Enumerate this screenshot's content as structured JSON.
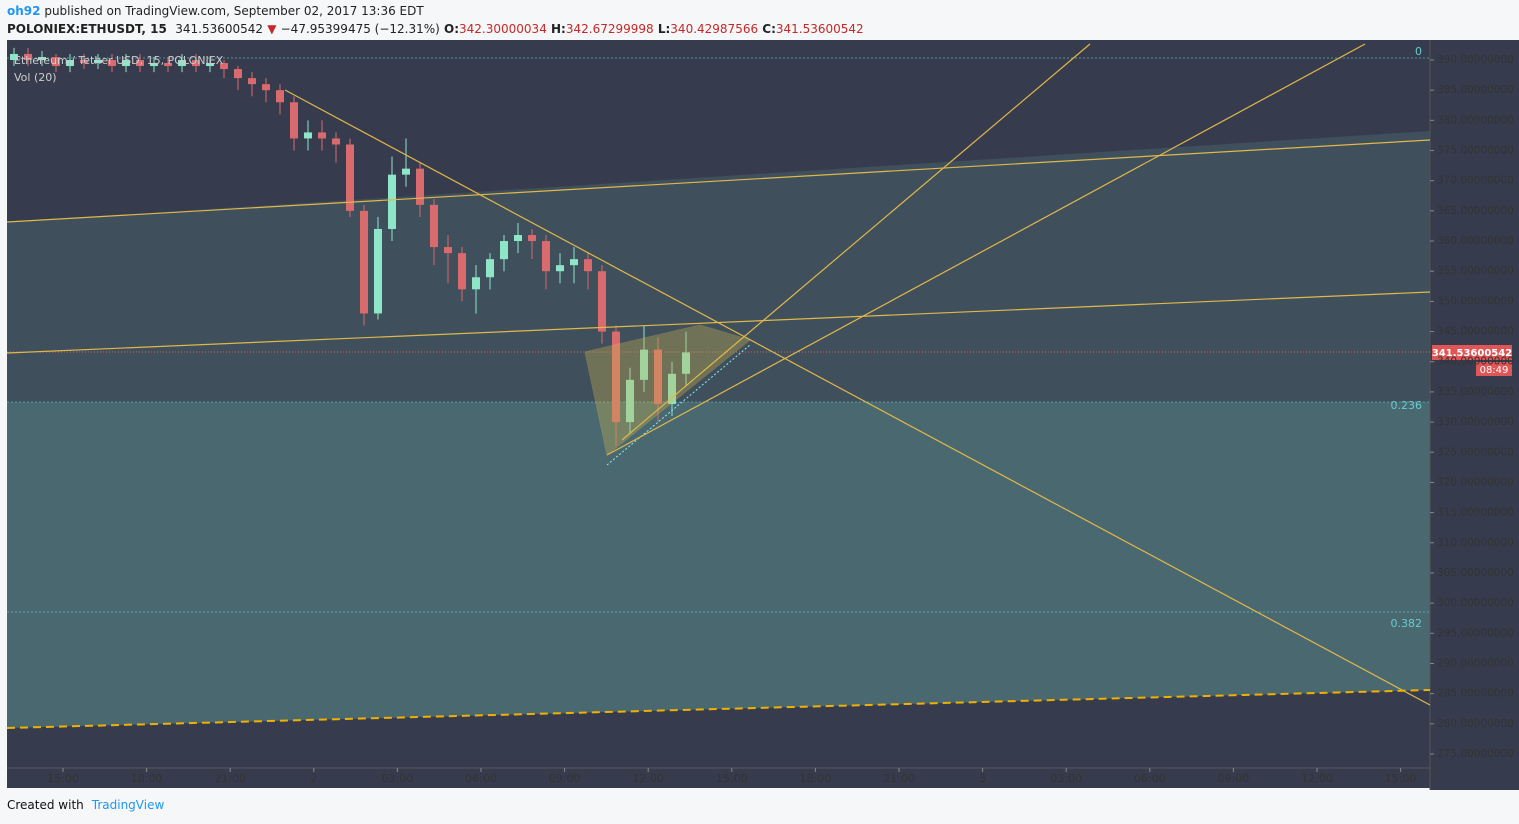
{
  "header": {
    "author": "oh92",
    "published": "published on TradingView.com, September 02, 2017 13:36 EDT"
  },
  "symbol_bar": {
    "symbol": "POLONIEX:ETHUSDT, 15",
    "last": "341.53600542",
    "arrow": "▼",
    "change": "−47.95399475 (−12.31%)",
    "open": "O:",
    "open_value": "342.30000034",
    "high": "H:",
    "high_value": "342.67299998",
    "low": "L:",
    "low_value": "340.42987566",
    "close": "C:",
    "close_value": "341.53600542"
  },
  "legend": {
    "series": "Ethereum / Tether USD, 15, POLONIEX",
    "volume": "Vol (20)"
  },
  "chart": {
    "candles": [
      [
        390,
        392,
        389,
        391
      ],
      [
        391,
        392,
        389,
        390
      ],
      [
        390,
        391.5,
        389,
        390.5
      ],
      [
        390.5,
        391,
        388,
        389
      ],
      [
        389,
        391,
        388,
        390
      ],
      [
        390,
        391,
        388.5,
        389.5
      ],
      [
        389.5,
        391,
        388.5,
        390
      ],
      [
        390,
        391,
        388,
        389
      ],
      [
        389,
        391,
        388,
        390
      ],
      [
        390,
        391,
        388,
        389
      ],
      [
        389,
        390.5,
        388,
        389.5
      ],
      [
        389.5,
        390.5,
        388,
        389
      ],
      [
        389,
        391,
        388,
        390
      ],
      [
        390,
        391,
        388,
        389
      ],
      [
        389,
        390.5,
        388,
        389.5
      ],
      [
        389.5,
        390,
        387,
        388.5
      ],
      [
        388.5,
        389,
        385,
        387
      ],
      [
        387,
        388,
        384,
        386
      ],
      [
        386,
        387,
        383,
        385
      ],
      [
        385,
        386,
        381,
        383
      ],
      [
        383,
        384,
        375,
        377
      ],
      [
        377,
        380,
        375,
        378
      ],
      [
        378,
        380,
        375,
        377
      ],
      [
        377,
        378,
        373,
        376
      ],
      [
        376,
        377,
        364,
        365
      ],
      [
        365,
        366,
        346,
        348
      ],
      [
        348,
        364,
        347,
        362
      ],
      [
        362,
        374,
        360,
        371
      ],
      [
        371,
        377,
        369,
        372
      ],
      [
        372,
        373,
        364,
        366
      ],
      [
        366,
        367,
        356,
        359
      ],
      [
        359,
        361,
        353,
        358
      ],
      [
        358,
        359,
        350,
        352
      ],
      [
        352,
        356,
        348,
        354
      ],
      [
        354,
        358,
        352,
        357
      ],
      [
        357,
        361,
        355,
        360
      ],
      [
        360,
        363,
        358,
        361
      ],
      [
        361,
        362,
        357,
        360
      ],
      [
        360,
        361,
        352,
        355
      ],
      [
        355,
        358,
        353,
        356
      ],
      [
        356,
        359,
        353,
        357
      ],
      [
        357,
        358,
        352,
        355
      ],
      [
        355,
        356,
        343,
        345
      ],
      [
        345,
        346,
        326,
        330
      ],
      [
        330,
        339,
        328,
        337
      ],
      [
        337,
        346,
        335,
        342
      ],
      [
        342,
        344,
        330,
        333
      ],
      [
        333,
        340,
        331,
        338
      ],
      [
        338,
        345,
        336,
        341.54
      ]
    ],
    "yticks": [
      {
        "value": 390,
        "label": "390.00000000"
      },
      {
        "value": 385,
        "label": "385.00000000"
      },
      {
        "value": 380,
        "label": "380.00000000"
      },
      {
        "value": 375,
        "label": "375.00000000"
      },
      {
        "value": 370,
        "label": "370.00000000"
      },
      {
        "value": 365,
        "label": "365.00000000"
      },
      {
        "value": 360,
        "label": "360.00000000"
      },
      {
        "value": 355,
        "label": "355.00000000"
      },
      {
        "value": 350,
        "label": "350.00000000"
      },
      {
        "value": 345,
        "label": "345.00000000"
      },
      {
        "value": 340,
        "label": "340.00000000"
      },
      {
        "value": 335,
        "label": "335.00000000"
      },
      {
        "value": 330,
        "label": "330.00000000"
      },
      {
        "value": 325,
        "label": "325.00000000"
      },
      {
        "value": 320,
        "label": "320.00000000"
      },
      {
        "value": 315,
        "label": "315.00000000"
      },
      {
        "value": 310,
        "label": "310.00000000"
      },
      {
        "value": 305,
        "label": "305.00000000"
      },
      {
        "value": 300,
        "label": "300.00000000"
      },
      {
        "value": 295,
        "label": "295.00000000"
      },
      {
        "value": 290,
        "label": "290.00000000"
      },
      {
        "value": 285,
        "label": "285.00000000"
      },
      {
        "value": 280,
        "label": "280.00000000"
      },
      {
        "value": 275,
        "label": "275.00000000"
      }
    ],
    "ylim": [
      275,
      390
    ],
    "xticks": [
      "15:00",
      "18:00",
      "21:00",
      "2",
      "03:00",
      "06:00",
      "09:00",
      "12:00",
      "15:00",
      "18:00",
      "21:00",
      "3",
      "03:00",
      "06:00",
      "09:00",
      "12:00",
      "15:00"
    ],
    "fib": {
      "level_0": "0",
      "level_236": "0.236",
      "level_382": "0.382"
    },
    "price_tag": "341.53600542",
    "countdown": "08:49"
  },
  "footer": {
    "created": "Created with",
    "brand": "TradingView"
  }
}
